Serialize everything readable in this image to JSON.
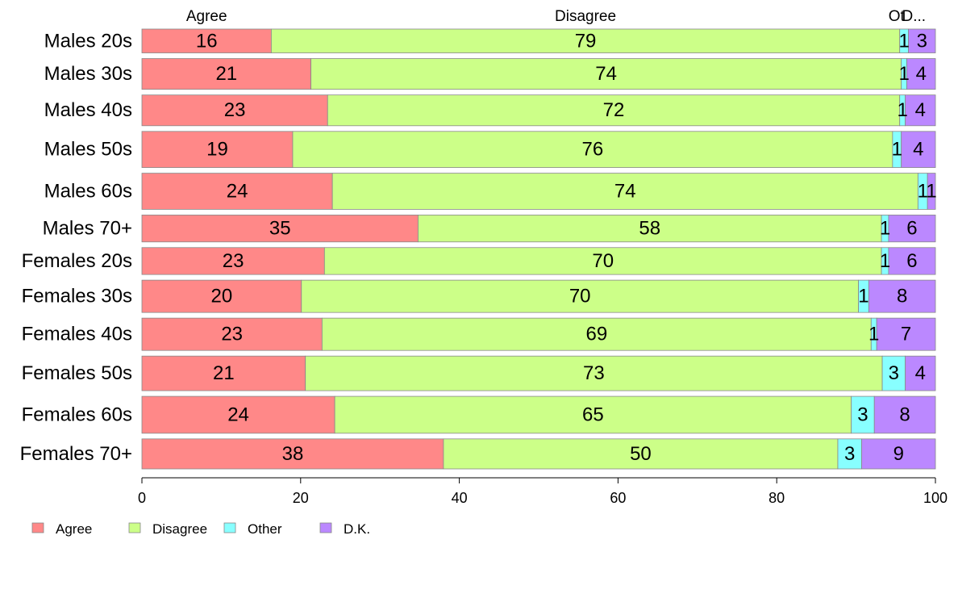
{
  "chart_data": {
    "type": "bar",
    "orientation": "horizontal",
    "stacked": true,
    "categories": [
      "Males 20s",
      "Males 30s",
      "Males 40s",
      "Males 50s",
      "Males 60s",
      "Males 70+",
      "Females 20s",
      "Females 30s",
      "Females 40s",
      "Females 50s",
      "Females 60s",
      "Females 70+"
    ],
    "series": [
      {
        "name": "Agree",
        "color": "#ff8888",
        "values": [
          16.3,
          21.3,
          23.4,
          19.0,
          24.0,
          34.8,
          23.0,
          20.1,
          22.7,
          20.6,
          24.3,
          38.0
        ]
      },
      {
        "name": "Disagree",
        "color": "#ccff88",
        "values": [
          79.2,
          74.4,
          72.1,
          75.6,
          73.8,
          58.4,
          70.2,
          70.2,
          69.2,
          72.7,
          65.1,
          49.7
        ]
      },
      {
        "name": "Other",
        "color": "#88ffff",
        "values": [
          1.1,
          0.7,
          0.7,
          1.1,
          1.2,
          0.9,
          0.9,
          1.3,
          0.7,
          2.9,
          2.9,
          3.0
        ]
      },
      {
        "name": "D.K.",
        "color": "#bb88ff",
        "values": [
          3.4,
          3.6,
          3.8,
          4.3,
          1.0,
          5.9,
          5.9,
          8.4,
          7.4,
          3.8,
          7.7,
          9.3
        ]
      }
    ],
    "value_labels": [
      [
        "16",
        "79",
        "1",
        "3"
      ],
      [
        "21",
        "74",
        "1",
        "4"
      ],
      [
        "23",
        "72",
        "1",
        "4"
      ],
      [
        "19",
        "76",
        "1",
        "4"
      ],
      [
        "24",
        "74",
        "1",
        "1"
      ],
      [
        "35",
        "58",
        "1",
        "6"
      ],
      [
        "23",
        "70",
        "1",
        "6"
      ],
      [
        "20",
        "70",
        "1",
        "8"
      ],
      [
        "23",
        "69",
        "1",
        "7"
      ],
      [
        "21",
        "73",
        "3",
        "4"
      ],
      [
        "24",
        "65",
        "3",
        "8"
      ],
      [
        "38",
        "50",
        "3",
        "9"
      ]
    ],
    "row_weights": [
      31,
      40,
      40,
      47,
      47,
      35,
      35,
      42,
      42,
      45,
      48,
      39
    ],
    "top_labels": [
      "Agree",
      "Disagree",
      "Ot",
      "D..."
    ],
    "x_ticks": [
      "0",
      "20",
      "40",
      "60",
      "80",
      "100"
    ],
    "xlim": [
      0,
      100
    ],
    "grid": false,
    "legend_position": "bottom-left"
  }
}
